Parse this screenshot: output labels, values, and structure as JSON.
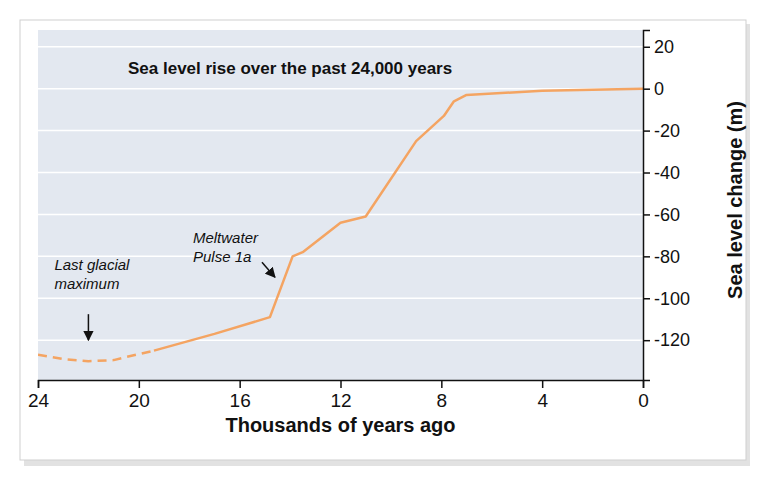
{
  "chart_data": {
    "type": "line",
    "title": "Sea level rise over the past 24,000 years",
    "x_label": "Thousands of years ago",
    "y_label": "Sea level change (m)",
    "x": [
      24,
      23,
      22,
      21,
      20.5,
      19.4,
      17,
      14.8,
      13.9,
      13.5,
      12,
      11,
      9,
      7.9,
      7.5,
      7,
      4,
      0
    ],
    "series": [
      {
        "color": "#f4a462",
        "line_style": "dashed",
        "values": [
          -127,
          -129,
          -130,
          -129.5,
          -128,
          -125,
          null,
          null,
          null,
          null,
          null,
          null,
          null,
          null,
          null,
          null,
          null,
          null
        ]
      },
      {
        "color": "#f4a462",
        "line_style": "solid",
        "values": [
          null,
          null,
          null,
          null,
          null,
          -125,
          -117,
          -109,
          -80,
          -78,
          -64,
          -61,
          -25,
          -13,
          -6,
          -3,
          -1,
          0
        ]
      }
    ],
    "xlim": [
      24,
      0
    ],
    "xticks": [
      24,
      20,
      16,
      12,
      8,
      4,
      0
    ],
    "ylim": [
      -139,
      28
    ],
    "yticks": [
      20,
      0,
      -20,
      -40,
      -60,
      -80,
      -100,
      -120
    ],
    "grid": true,
    "annotations": [
      {
        "text": [
          "Last glacial",
          "maximum"
        ],
        "x": 22,
        "y": -120
      },
      {
        "text": [
          "Meltwater",
          "Pulse 1a"
        ],
        "x": 14.6,
        "y": -90
      }
    ]
  }
}
